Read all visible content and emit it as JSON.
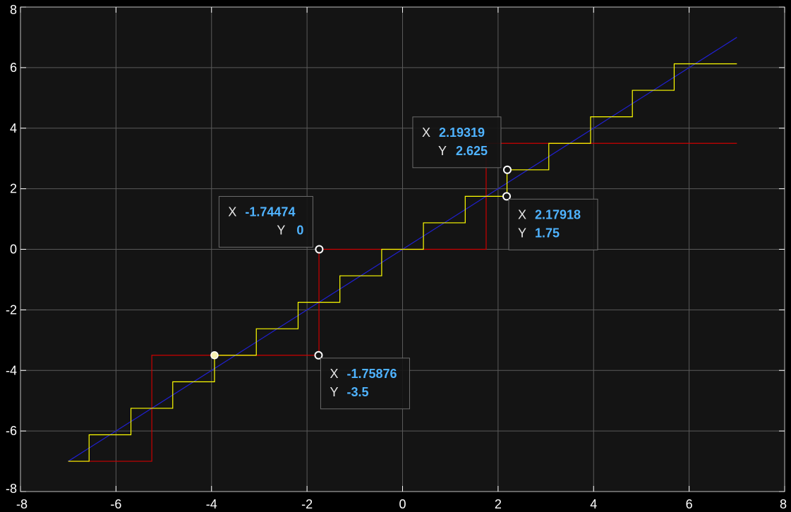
{
  "chart_data": {
    "type": "line",
    "title": "",
    "xlabel": "",
    "ylabel": "",
    "xlim": [
      -8,
      8
    ],
    "ylim": [
      -8,
      8
    ],
    "xticks": [
      "-8",
      "-6",
      "-4",
      "-2",
      "0",
      "2",
      "4",
      "6",
      "8"
    ],
    "yticks": [
      "-8",
      "-6",
      "-4",
      "-2",
      "0",
      "2",
      "4",
      "6",
      "8"
    ],
    "grid": true,
    "legend": "none",
    "colors": {
      "background": "#000000",
      "axes_background": "#141414",
      "grid": "#5a5a5a",
      "tick_text": "#ffffff",
      "datatip_value": "#4fb3ff"
    },
    "series": [
      {
        "color": "#2020d0",
        "style": "line",
        "x": [
          -7,
          7
        ],
        "y": [
          -7,
          7
        ]
      },
      {
        "color": "#ffff00",
        "style": "step",
        "x": [
          -7,
          -6.563,
          -6.563,
          -5.687,
          -5.687,
          -4.812,
          -4.812,
          -3.937,
          -3.937,
          -3.062,
          -3.062,
          -2.187,
          -2.187,
          -1.312,
          -1.312,
          -0.437,
          -0.437,
          0.437,
          0.437,
          1.312,
          1.312,
          2.187,
          2.187,
          3.062,
          3.062,
          3.937,
          3.937,
          4.812,
          4.812,
          5.687,
          5.687,
          7
        ],
        "y": [
          -7,
          -7,
          -6.125,
          -6.125,
          -5.25,
          -5.25,
          -4.375,
          -4.375,
          -3.5,
          -3.5,
          -2.625,
          -2.625,
          -1.75,
          -1.75,
          -0.875,
          -0.875,
          0,
          0,
          0.875,
          0.875,
          1.75,
          1.75,
          2.625,
          2.625,
          3.5,
          3.5,
          4.375,
          4.375,
          5.25,
          5.25,
          6.125,
          6.125
        ]
      },
      {
        "color": "#cc0000",
        "style": "step",
        "x": [
          -7,
          -5.25,
          -5.25,
          -1.75,
          -1.75,
          1.75,
          1.75,
          7
        ],
        "y": [
          -7,
          -7,
          -3.5,
          -3.5,
          0,
          0,
          3.5,
          3.5
        ]
      }
    ],
    "datatips": [
      {
        "x_label": "X",
        "y_label": "Y",
        "x": "-1.74474",
        "y": "0",
        "px": -1.74474,
        "py": 0,
        "placement": "upper-left",
        "line_labels_right": true
      },
      {
        "x_label": "X",
        "y_label": "Y",
        "x": "-1.75876",
        "y": "-3.5",
        "px": -1.75876,
        "py": -3.5,
        "placement": "lower-right"
      },
      {
        "x_label": "X",
        "y_label": "Y",
        "x": "2.19319",
        "y": "2.625",
        "px": 2.19319,
        "py": 2.625,
        "placement": "upper-left"
      },
      {
        "x_label": "X",
        "y_label": "Y",
        "x": "2.17918",
        "y": "1.75",
        "px": 2.17918,
        "py": 1.75,
        "placement": "lower-right"
      }
    ],
    "markers": [
      {
        "x": -3.9375,
        "y": -3.5
      }
    ]
  }
}
